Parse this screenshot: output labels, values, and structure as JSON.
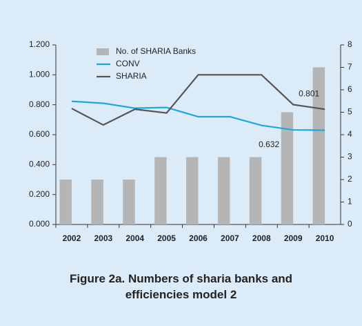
{
  "chart_data": {
    "type": "bar",
    "title": "Figure 2a. Numbers of sharia banks and efficiencies model 2",
    "categories": [
      "2002",
      "2003",
      "2004",
      "2005",
      "2006",
      "2007",
      "2008",
      "2009",
      "2010"
    ],
    "series": [
      {
        "name": "No. of SHARIA Banks",
        "type": "bar",
        "axis": "y2",
        "color": "#b5b5b5",
        "values": [
          2,
          2,
          2,
          3,
          3,
          3,
          3,
          5,
          7
        ]
      },
      {
        "name": "CONV",
        "type": "line",
        "color": "#1aa7e0",
        "values": [
          0.823,
          0.81,
          0.777,
          0.782,
          0.72,
          0.72,
          0.662,
          0.632,
          0.63
        ],
        "value_labels": [
          null,
          null,
          null,
          null,
          null,
          null,
          null,
          "0.632",
          null
        ]
      },
      {
        "name": "SHARIA",
        "type": "line",
        "color": "#555555",
        "values": [
          0.775,
          0.665,
          0.77,
          0.745,
          1.0,
          1.0,
          1.0,
          0.801,
          0.77
        ],
        "value_labels": [
          null,
          null,
          null,
          null,
          null,
          null,
          null,
          "0.801",
          null
        ]
      }
    ],
    "ylim": [
      0,
      1.2
    ],
    "yticks": [
      {
        "value": 0,
        "label": "0.000"
      },
      {
        "value": 0.2,
        "label": "0.200"
      },
      {
        "value": 0.4,
        "label": "0.400"
      },
      {
        "value": 0.6,
        "label": "0.600"
      },
      {
        "value": 0.8,
        "label": "0.800"
      },
      {
        "value": 1.0,
        "label": "1.000"
      },
      {
        "value": 1.2,
        "label": "1.200"
      }
    ],
    "y2lim": [
      0,
      8
    ],
    "y2ticks": [
      0,
      1,
      2,
      3,
      4,
      5,
      6,
      7,
      8
    ],
    "grid": false,
    "legend": "top-left"
  }
}
